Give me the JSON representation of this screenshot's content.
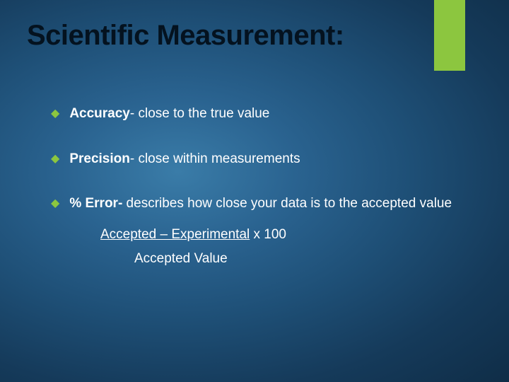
{
  "slide": {
    "title": "Scientific Measurement:",
    "accent_color": "#8cc63f",
    "background_gradient": {
      "type": "radial",
      "center": "35% 45%",
      "stops": [
        "#3a7ca8",
        "#2a6390",
        "#1e4f76",
        "#153a5a",
        "#0f2d47"
      ]
    },
    "title_color": "#04121f",
    "title_fontsize": 40,
    "text_color": "#ffffff",
    "body_fontsize": 19,
    "bullet_color": "#8cc63f",
    "bullets": [
      {
        "bold": "Accuracy",
        "rest": "- close to the true value"
      },
      {
        "bold": "Precision",
        "rest": "- close within measurements"
      },
      {
        "bold": "% Error-",
        "rest": " describes how close your data is to the accepted value"
      }
    ],
    "formula": {
      "numerator": "Accepted – Experimental",
      "multiplier": " x 100",
      "denominator": "Accepted Value"
    }
  }
}
